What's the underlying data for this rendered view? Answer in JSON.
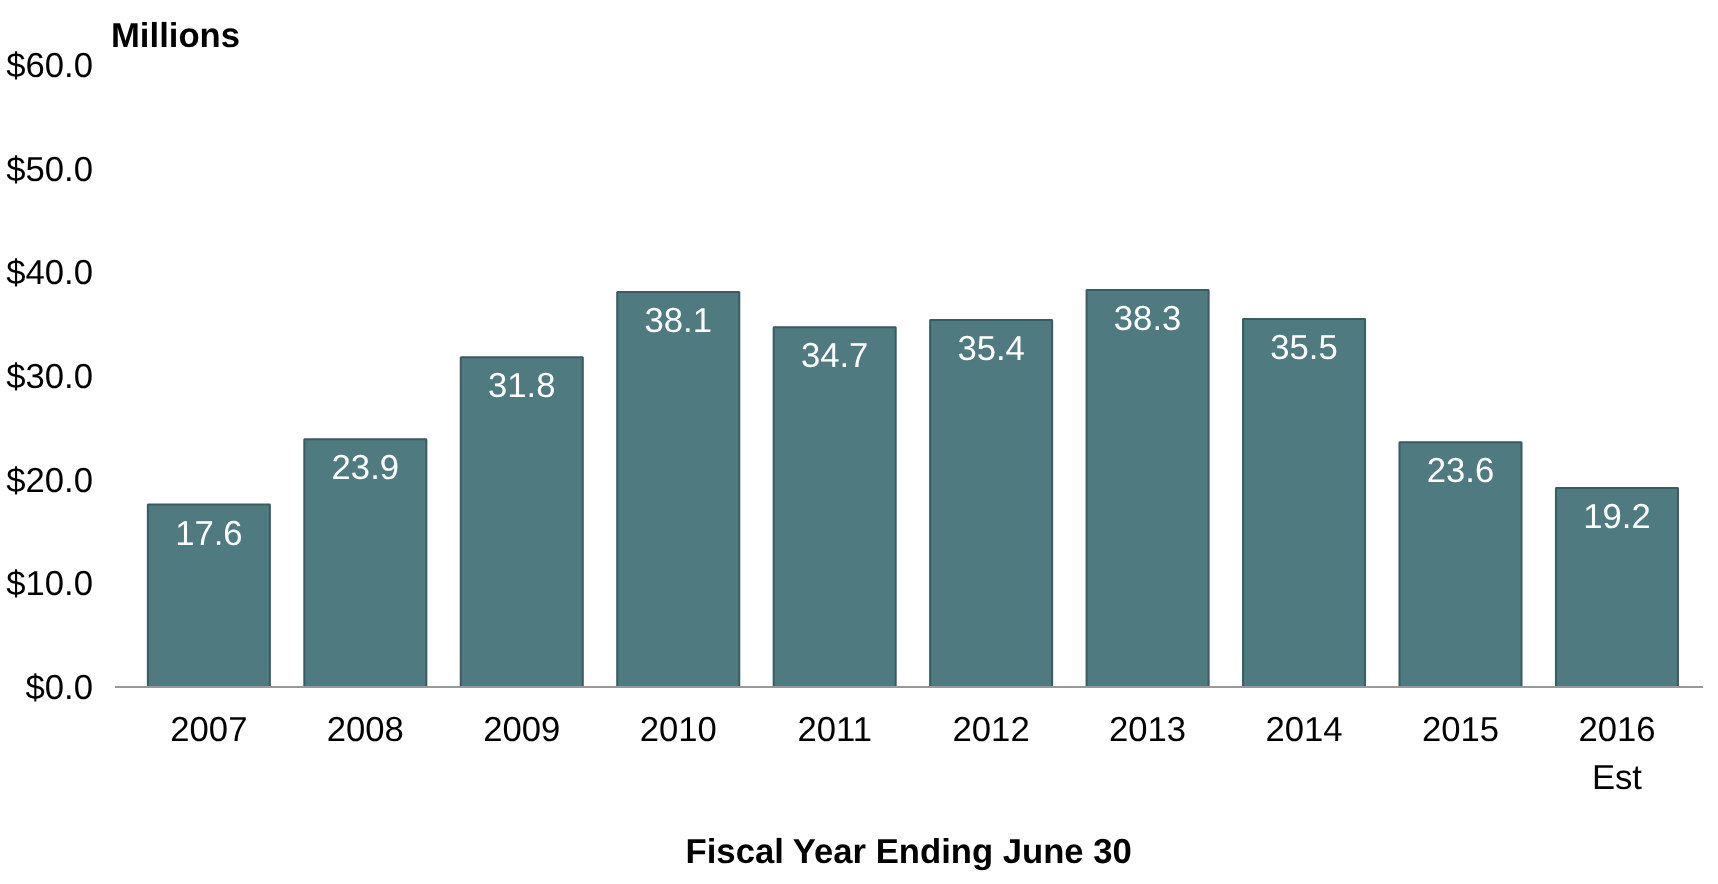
{
  "chart_data": {
    "type": "bar",
    "ylabel": "Millions",
    "xlabel": "Fiscal Year Ending June 30",
    "categories": [
      "2007",
      "2008",
      "2009",
      "2010",
      "2011",
      "2012",
      "2013",
      "2014",
      "2015",
      "2016\nEst"
    ],
    "values": [
      17.6,
      23.9,
      31.8,
      38.1,
      34.7,
      35.4,
      38.3,
      35.5,
      23.6,
      19.2
    ],
    "color": "#4e7a80",
    "ylim": [
      0,
      60
    ],
    "yticks": [
      {
        "value": 0,
        "label": "$0.0"
      },
      {
        "value": 10,
        "label": "$10.0"
      },
      {
        "value": 20,
        "label": "$20.0"
      },
      {
        "value": 30,
        "label": "$30.0"
      },
      {
        "value": 40,
        "label": "$40.0"
      },
      {
        "value": 50,
        "label": "$50.0"
      },
      {
        "value": 60,
        "label": "$60.0"
      }
    ],
    "data_labels": true,
    "grid": false
  }
}
